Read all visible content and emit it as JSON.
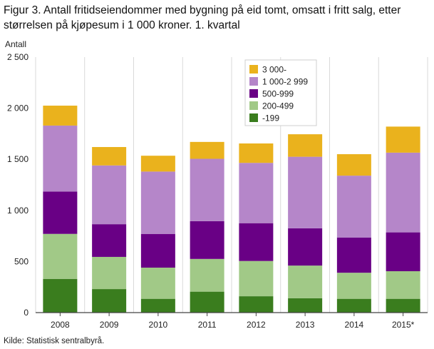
{
  "title": "Figur 3. Antall fritidseiendommer med bygning på eid tomt, omsatt i fritt salg, etter størrelsen på kjøpesum i 1 000 kroner. 1. kvartal",
  "source": "Kilde: Statistisk sentralbyrå.",
  "chart_data": {
    "type": "bar",
    "stacked": true,
    "title": "Figur 3. Antall fritidseiendommer med bygning på eid tomt, omsatt i fritt salg, etter størrelsen på kjøpesum i 1 000 kroner. 1. kvartal",
    "ylabel": "Antall",
    "xlabel": "",
    "ylim": [
      0,
      2500
    ],
    "yticks": [
      0,
      500,
      1000,
      1500,
      2000,
      2500
    ],
    "ytick_labels": [
      "0",
      "500",
      "1 000",
      "1 500",
      "2 000",
      "2 500"
    ],
    "grid": "vertical lines between categories",
    "legend_position": "top-right",
    "categories": [
      "2008",
      "2009",
      "2010",
      "2011",
      "2012",
      "2013",
      "2014",
      "2015*"
    ],
    "series": [
      {
        "name": "-199",
        "color": "#3a7d1e",
        "values": [
          330,
          230,
          135,
          205,
          160,
          140,
          135,
          135
        ]
      },
      {
        "name": "200-499",
        "color": "#a1c987",
        "values": [
          440,
          315,
          305,
          320,
          345,
          320,
          255,
          270
        ]
      },
      {
        "name": "500-999",
        "color": "#690085",
        "values": [
          415,
          320,
          330,
          370,
          370,
          365,
          345,
          380
        ]
      },
      {
        "name": "1 000-2 999",
        "color": "#b586c9",
        "values": [
          645,
          575,
          610,
          610,
          590,
          700,
          605,
          780
        ]
      },
      {
        "name": "3 000-",
        "color": "#eab21d",
        "values": [
          195,
          180,
          155,
          165,
          190,
          220,
          210,
          255
        ]
      }
    ],
    "legend_order": [
      "3 000-",
      "1 000-2 999",
      "500-999",
      "200-499",
      "-199"
    ]
  }
}
